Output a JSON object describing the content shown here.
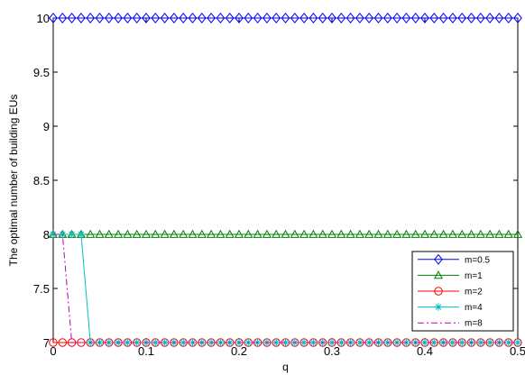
{
  "chart_data": {
    "type": "line",
    "title": "",
    "xlabel": "q",
    "ylabel": "The optimal number of building EUs",
    "xlim": [
      0,
      0.5
    ],
    "ylim": [
      7,
      10
    ],
    "x_ticks": [
      "0",
      "0.1",
      "0.2",
      "0.3",
      "0.4",
      "0.5"
    ],
    "y_ticks": [
      "7",
      "7.5",
      "8",
      "8.5",
      "9",
      "9.5",
      "10"
    ],
    "grid": false,
    "legend_position": "lower-right",
    "x": [
      0,
      0.01,
      0.02,
      0.03,
      0.04,
      0.05,
      0.06,
      0.07,
      0.08,
      0.09,
      0.1,
      0.11,
      0.12,
      0.13,
      0.14,
      0.15,
      0.16,
      0.17,
      0.18,
      0.19,
      0.2,
      0.21,
      0.22,
      0.23,
      0.24,
      0.25,
      0.26,
      0.27,
      0.28,
      0.29,
      0.3,
      0.31,
      0.32,
      0.33,
      0.34,
      0.35,
      0.36,
      0.37,
      0.38,
      0.39,
      0.4,
      0.41,
      0.42,
      0.43,
      0.44,
      0.45,
      0.46,
      0.47,
      0.48,
      0.49,
      0.5
    ],
    "series": [
      {
        "name": "m=0.5",
        "color": "#0000ff",
        "marker": "diamond",
        "dash": "solid",
        "values": [
          10,
          10,
          10,
          10,
          10,
          10,
          10,
          10,
          10,
          10,
          10,
          10,
          10,
          10,
          10,
          10,
          10,
          10,
          10,
          10,
          10,
          10,
          10,
          10,
          10,
          10,
          10,
          10,
          10,
          10,
          10,
          10,
          10,
          10,
          10,
          10,
          10,
          10,
          10,
          10,
          10,
          10,
          10,
          10,
          10,
          10,
          10,
          10,
          10,
          10,
          10
        ]
      },
      {
        "name": "m=1",
        "color": "#008000",
        "marker": "triangle",
        "dash": "solid",
        "values": [
          8,
          8,
          8,
          8,
          8,
          8,
          8,
          8,
          8,
          8,
          8,
          8,
          8,
          8,
          8,
          8,
          8,
          8,
          8,
          8,
          8,
          8,
          8,
          8,
          8,
          8,
          8,
          8,
          8,
          8,
          8,
          8,
          8,
          8,
          8,
          8,
          8,
          8,
          8,
          8,
          8,
          8,
          8,
          8,
          8,
          8,
          8,
          8,
          8,
          8,
          8
        ]
      },
      {
        "name": "m=2",
        "color": "#ff0000",
        "marker": "circle",
        "dash": "solid",
        "values": [
          7,
          7,
          7,
          7,
          7,
          7,
          7,
          7,
          7,
          7,
          7,
          7,
          7,
          7,
          7,
          7,
          7,
          7,
          7,
          7,
          7,
          7,
          7,
          7,
          7,
          7,
          7,
          7,
          7,
          7,
          7,
          7,
          7,
          7,
          7,
          7,
          7,
          7,
          7,
          7,
          7,
          7,
          7,
          7,
          7,
          7,
          7,
          7,
          7,
          7,
          7
        ]
      },
      {
        "name": "m=4",
        "color": "#00bfbf",
        "marker": "star",
        "dash": "solid",
        "values": [
          8,
          8,
          8,
          8,
          7,
          7,
          7,
          7,
          7,
          7,
          7,
          7,
          7,
          7,
          7,
          7,
          7,
          7,
          7,
          7,
          7,
          7,
          7,
          7,
          7,
          7,
          7,
          7,
          7,
          7,
          7,
          7,
          7,
          7,
          7,
          7,
          7,
          7,
          7,
          7,
          7,
          7,
          7,
          7,
          7,
          7,
          7,
          7,
          7,
          7,
          7
        ]
      },
      {
        "name": "m=8",
        "color": "#bf00bf",
        "marker": "none",
        "dash": "dashdot",
        "values": [
          8,
          8,
          7,
          7,
          7,
          7,
          7,
          7,
          7,
          7,
          7,
          7,
          7,
          7,
          7,
          7,
          7,
          7,
          7,
          7,
          7,
          7,
          7,
          7,
          7,
          7,
          7,
          7,
          7,
          7,
          7,
          7,
          7,
          7,
          7,
          7,
          7,
          7,
          7,
          7,
          7,
          7,
          7,
          7,
          7,
          7,
          7,
          7,
          7,
          7,
          7
        ]
      }
    ]
  }
}
